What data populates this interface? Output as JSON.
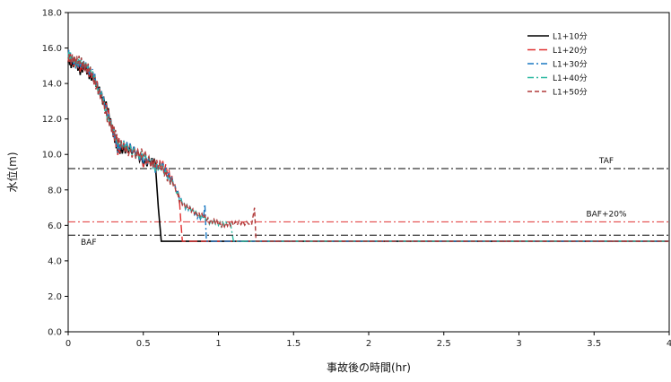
{
  "chart_data": {
    "type": "line",
    "xlabel": "事故後の時間(hr)",
    "ylabel": "水位(m)",
    "xlim": [
      0,
      4
    ],
    "ylim": [
      0,
      18
    ],
    "x_ticks": [
      0,
      0.5,
      1,
      1.5,
      2,
      2.5,
      3,
      3.5,
      4
    ],
    "x_tick_labels": [
      "0",
      "0.5",
      "1",
      "1.5",
      "2",
      "2.5",
      "3",
      "3.5",
      "4"
    ],
    "y_ticks": [
      0,
      2,
      4,
      6,
      8,
      10,
      12,
      14,
      16,
      18
    ],
    "y_tick_labels": [
      "0.0",
      "2.0",
      "4.0",
      "6.0",
      "8.0",
      "10.0",
      "12.0",
      "14.0",
      "16.0",
      "18.0"
    ],
    "grid": false,
    "legend_position": "top-right",
    "reference_lines": [
      {
        "label": "TAF",
        "y": 9.2,
        "color": "#000000"
      },
      {
        "label": "BAF+20%",
        "y": 6.2,
        "color": "#e03030"
      },
      {
        "label": "BAF",
        "y": 5.45,
        "color": "#000000"
      }
    ],
    "common_descent": [
      [
        0.0,
        15.4
      ],
      [
        0.02,
        15.3
      ],
      [
        0.05,
        15.2
      ],
      [
        0.08,
        15.0
      ],
      [
        0.11,
        14.9
      ],
      [
        0.14,
        14.6
      ],
      [
        0.17,
        14.2
      ],
      [
        0.2,
        13.6
      ],
      [
        0.23,
        13.0
      ],
      [
        0.26,
        12.3
      ],
      [
        0.29,
        11.5
      ],
      [
        0.31,
        11.0
      ],
      [
        0.33,
        10.5
      ],
      [
        0.36,
        10.4
      ],
      [
        0.4,
        10.2
      ],
      [
        0.45,
        10.0
      ],
      [
        0.5,
        9.8
      ],
      [
        0.55,
        9.6
      ],
      [
        0.58,
        9.5
      ],
      [
        0.62,
        9.3
      ],
      [
        0.66,
        9.0
      ],
      [
        0.7,
        8.3
      ],
      [
        0.74,
        7.5
      ],
      [
        0.78,
        7.0
      ],
      [
        0.82,
        6.8
      ],
      [
        0.86,
        6.6
      ],
      [
        0.9,
        6.4
      ],
      [
        0.94,
        6.3
      ],
      [
        0.98,
        6.2
      ],
      [
        1.02,
        6.1
      ],
      [
        1.06,
        6.1
      ],
      [
        1.1,
        6.1
      ],
      [
        1.15,
        6.1
      ],
      [
        1.2,
        6.0
      ],
      [
        1.25,
        6.0
      ]
    ],
    "series": [
      {
        "name": "L1+10分",
        "color": "#000000",
        "dash": "",
        "split_x": 0.58,
        "drop": [
          [
            0.58,
            9.5
          ],
          [
            0.6,
            7.0
          ],
          [
            0.62,
            5.1
          ]
        ],
        "final": 5.1
      },
      {
        "name": "L1+20分",
        "color": "#e03030",
        "dash": "9,4",
        "split_x": 0.74,
        "drop": [
          [
            0.74,
            7.5
          ],
          [
            0.75,
            6.2
          ],
          [
            0.76,
            5.1
          ]
        ],
        "final": 5.1
      },
      {
        "name": "L1+30分",
        "color": "#1a78c2",
        "dash": "7,3,2,3",
        "split_x": 0.9,
        "drop": [
          [
            0.9,
            6.4
          ],
          [
            0.91,
            7.2
          ],
          [
            0.92,
            5.1
          ]
        ],
        "final": 5.1
      },
      {
        "name": "L1+40分",
        "color": "#2ab8a0",
        "dash": "7,3,2,3",
        "split_x": 1.08,
        "drop": [
          [
            1.08,
            6.1
          ],
          [
            1.09,
            5.6
          ],
          [
            1.1,
            5.1
          ]
        ],
        "final": 5.1
      },
      {
        "name": "L1+50分",
        "color": "#b03a3a",
        "dash": "5,3",
        "split_x": 1.22,
        "drop": [
          [
            1.22,
            6.0
          ],
          [
            1.24,
            7.0
          ],
          [
            1.25,
            5.1
          ]
        ],
        "final": 5.1
      }
    ]
  }
}
